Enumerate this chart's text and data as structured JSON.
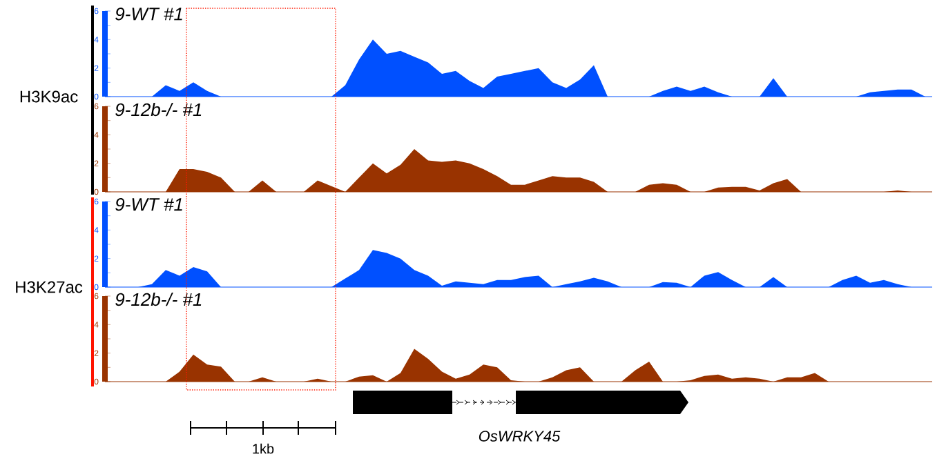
{
  "chart_data": [
    {
      "type": "area",
      "title": "9-WT #1",
      "ylabel": "H3K9ac",
      "categories": [
        null,
        null,
        null,
        null,
        null,
        null,
        null,
        null,
        null,
        null,
        null,
        null,
        null,
        null,
        null,
        null,
        null,
        null,
        null,
        null,
        null,
        null,
        null,
        null,
        null,
        null,
        null,
        null,
        null,
        null,
        null,
        null,
        null,
        null,
        null,
        null,
        null,
        null,
        null,
        null,
        null,
        null,
        null,
        null,
        null,
        null,
        null,
        null,
        null,
        null,
        null,
        null,
        null,
        null,
        null,
        null,
        null,
        null,
        null,
        null
      ],
      "ylim": [
        0,
        6
      ],
      "yticks": [
        0,
        {
          "value": 1,
          "label": null
        },
        2,
        {
          "value": 3,
          "label": null
        },
        4,
        {
          "value": 5,
          "label": null
        },
        6
      ],
      "series": [
        {
          "color": "#0050ff",
          "values": [
            0,
            0,
            0,
            0,
            0.8,
            0.4,
            1.0,
            0.4,
            0,
            0,
            0,
            0,
            0,
            0,
            0,
            0,
            0,
            0.8,
            2.6,
            4.0,
            3.0,
            3.2,
            2.8,
            2.4,
            1.6,
            1.8,
            1.1,
            0.6,
            1.4,
            1.6,
            1.8,
            2.0,
            1.0,
            0.6,
            1.2,
            2.2,
            0,
            0,
            0,
            0,
            0.4,
            0.7,
            0.4,
            0.7,
            0.3,
            0,
            0,
            0,
            1.3,
            0,
            0,
            0,
            0,
            0,
            0,
            0.3,
            0.4,
            0.5,
            0.5,
            0
          ]
        }
      ]
    },
    {
      "type": "area",
      "title": "9-12b-/- #1",
      "categories": [
        null,
        null,
        null,
        null,
        null,
        null,
        null,
        null,
        null,
        null,
        null,
        null,
        null,
        null,
        null,
        null,
        null,
        null,
        null,
        null,
        null,
        null,
        null,
        null,
        null,
        null,
        null,
        null,
        null,
        null,
        null,
        null,
        null,
        null,
        null,
        null,
        null,
        null,
        null,
        null,
        null,
        null,
        null,
        null,
        null,
        null,
        null,
        null,
        null,
        null,
        null,
        null,
        null,
        null,
        null,
        null,
        null,
        null,
        null,
        null
      ],
      "ylim": [
        0,
        6
      ],
      "yticks": [
        0,
        {
          "value": 1,
          "label": null
        },
        2,
        {
          "value": 3,
          "label": null
        },
        4,
        {
          "value": 5,
          "label": null
        },
        6
      ],
      "series": [
        {
          "color": "#993300",
          "values": [
            0,
            0,
            0,
            0,
            0,
            1.6,
            1.6,
            1.4,
            1.0,
            0,
            0,
            0.8,
            0,
            0,
            0,
            0.8,
            0.4,
            0,
            1.0,
            2.0,
            1.3,
            1.9,
            3.0,
            2.2,
            2.1,
            2.2,
            2.0,
            1.6,
            1.1,
            0.5,
            0.5,
            0.8,
            1.1,
            1.0,
            1.0,
            0.7,
            0,
            0,
            0,
            0.5,
            0.6,
            0.5,
            0,
            0,
            0.3,
            0.35,
            0.35,
            0.1,
            0.6,
            0.9,
            0,
            0,
            0,
            0,
            0,
            0,
            0,
            0.1,
            0,
            0
          ]
        }
      ]
    },
    {
      "type": "area",
      "title": "9-WT #1",
      "ylabel": "H3K27ac",
      "categories": [
        null,
        null,
        null,
        null,
        null,
        null,
        null,
        null,
        null,
        null,
        null,
        null,
        null,
        null,
        null,
        null,
        null,
        null,
        null,
        null,
        null,
        null,
        null,
        null,
        null,
        null,
        null,
        null,
        null,
        null,
        null,
        null,
        null,
        null,
        null,
        null,
        null,
        null,
        null,
        null,
        null,
        null,
        null,
        null,
        null,
        null,
        null,
        null,
        null,
        null,
        null,
        null,
        null,
        null,
        null,
        null,
        null,
        null,
        null,
        null
      ],
      "ylim": [
        0,
        6
      ],
      "yticks": [
        0,
        {
          "value": 1,
          "label": null
        },
        2,
        {
          "value": 3,
          "label": null
        },
        4,
        {
          "value": 5,
          "label": null
        },
        6
      ],
      "series": [
        {
          "color": "#0050ff",
          "values": [
            0,
            0,
            0,
            0.2,
            1.2,
            0.8,
            1.4,
            1.1,
            0,
            0,
            0,
            0,
            0,
            0,
            0,
            0,
            0,
            0.6,
            1.2,
            2.6,
            2.4,
            2.0,
            1.2,
            0.8,
            0.1,
            0.4,
            0.3,
            0.2,
            0.5,
            0.5,
            0.7,
            0.8,
            0,
            0.2,
            0.4,
            0.65,
            0.4,
            0,
            0,
            0,
            0.35,
            0.3,
            0,
            0.8,
            1.05,
            0.5,
            0,
            0,
            0.7,
            0,
            0,
            0,
            0,
            0.5,
            0.8,
            0.3,
            0.5,
            0.2,
            0,
            0
          ]
        }
      ]
    },
    {
      "type": "area",
      "title": "9-12b-/- #1",
      "categories": [
        null,
        null,
        null,
        null,
        null,
        null,
        null,
        null,
        null,
        null,
        null,
        null,
        null,
        null,
        null,
        null,
        null,
        null,
        null,
        null,
        null,
        null,
        null,
        null,
        null,
        null,
        null,
        null,
        null,
        null,
        null,
        null,
        null,
        null,
        null,
        null,
        null,
        null,
        null,
        null,
        null,
        null,
        null,
        null,
        null,
        null,
        null,
        null,
        null,
        null,
        null,
        null,
        null,
        null,
        null,
        null,
        null,
        null,
        null,
        null
      ],
      "ylim": [
        0,
        6
      ],
      "yticks": [
        0,
        {
          "value": 1,
          "label": null
        },
        2,
        {
          "value": 3,
          "label": null
        },
        4,
        {
          "value": 5,
          "label": null
        },
        6
      ],
      "series": [
        {
          "color": "#993300",
          "values": [
            0,
            0,
            0,
            0,
            0,
            0.7,
            1.9,
            1.2,
            1.05,
            0,
            0,
            0.3,
            0,
            0,
            0,
            0.2,
            0,
            0,
            0.35,
            0.45,
            0,
            0.6,
            2.3,
            1.6,
            0.7,
            0.2,
            0.5,
            1.2,
            1.0,
            0.1,
            0,
            0,
            0.3,
            0.8,
            1.0,
            0,
            0,
            0,
            0.8,
            1.4,
            0,
            0,
            0.1,
            0.4,
            0.5,
            0.2,
            0.3,
            0.2,
            0,
            0.3,
            0.3,
            0.6,
            0,
            0,
            0,
            0,
            0,
            0,
            0,
            0
          ]
        }
      ],
      "annotations": [
        "1kb",
        "OsWRKY45"
      ]
    }
  ]
}
